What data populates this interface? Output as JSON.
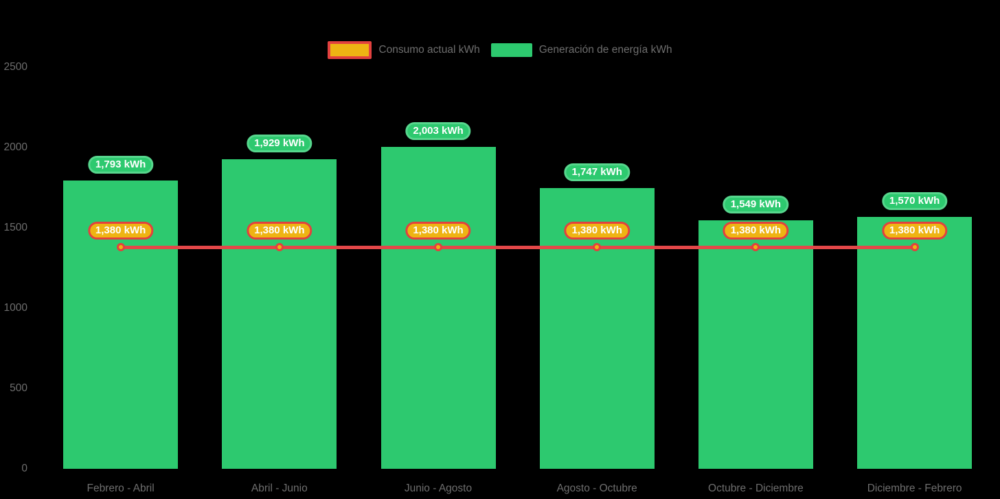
{
  "chart_data": {
    "type": "bar",
    "title": "",
    "xlabel": "",
    "ylabel": "",
    "categories": [
      "Febrero - Abril",
      "Abril - Junio",
      "Junio - Agosto",
      "Agosto - Octubre",
      "Octubre - Diciembre",
      "Diciembre - Febrero"
    ],
    "series": [
      {
        "name": "Consumo actual kWh",
        "type": "line",
        "values": [
          1380,
          1380,
          1380,
          1380,
          1380,
          1380
        ],
        "labels": [
          "1,380 kWh",
          "1,380 kWh",
          "1,380 kWh",
          "1,380 kWh",
          "1,380 kWh",
          "1,380 kWh"
        ],
        "line_color": "#e34748",
        "marker_fill": "#eeb413",
        "marker_stroke": "#e2413f",
        "label_fill": "#eeb413",
        "label_border": "#e2413f"
      },
      {
        "name": "Generación de energía kWh",
        "type": "bar",
        "values": [
          1793,
          1929,
          2003,
          1747,
          1549,
          1570
        ],
        "labels": [
          "1,793 kWh",
          "1,929 kWh",
          "2,003 kWh",
          "1,747 kWh",
          "1,549 kWh",
          "1,570 kWh"
        ],
        "bar_color": "#2dc96f",
        "label_fill": "#2dc96f",
        "label_border": "#57d68d"
      }
    ],
    "ylim": [
      0,
      2500
    ],
    "yticks": [
      "0",
      "500",
      "1000",
      "1500",
      "2000",
      "2500"
    ],
    "grid": false,
    "legend_position": "top",
    "background": "#000000",
    "axis_text_color": "#6e6e6e",
    "label_text_color": "#ffffff"
  }
}
